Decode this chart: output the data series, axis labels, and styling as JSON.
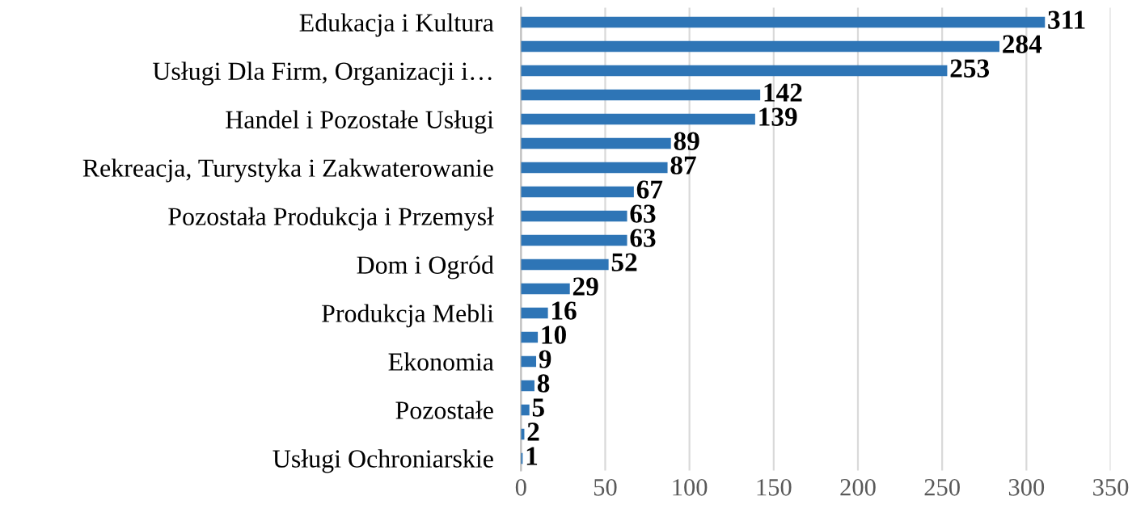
{
  "chart_data": {
    "type": "bar",
    "orientation": "horizontal",
    "categories": [
      "Edukacja i Kultura",
      null,
      "Usługi Dla Firm, Organizacji i…",
      null,
      "Handel i Pozostałe Usługi",
      null,
      "Rekreacja, Turystyka i Zakwaterowanie",
      null,
      "Pozostała Produkcja i Przemysł",
      null,
      "Dom i Ogród",
      null,
      "Produkcja Mebli",
      null,
      "Ekonomia",
      null,
      "Pozostałe",
      null,
      "Usługi Ochroniarskie"
    ],
    "values": [
      311,
      284,
      253,
      142,
      139,
      89,
      87,
      67,
      63,
      63,
      52,
      29,
      16,
      10,
      9,
      8,
      5,
      2,
      1
    ],
    "color": "#2e75b6",
    "xlim": [
      0,
      350
    ],
    "xticks": [
      0,
      50,
      100,
      150,
      200,
      250,
      300,
      350
    ],
    "grid": "x",
    "data_labels": true
  }
}
